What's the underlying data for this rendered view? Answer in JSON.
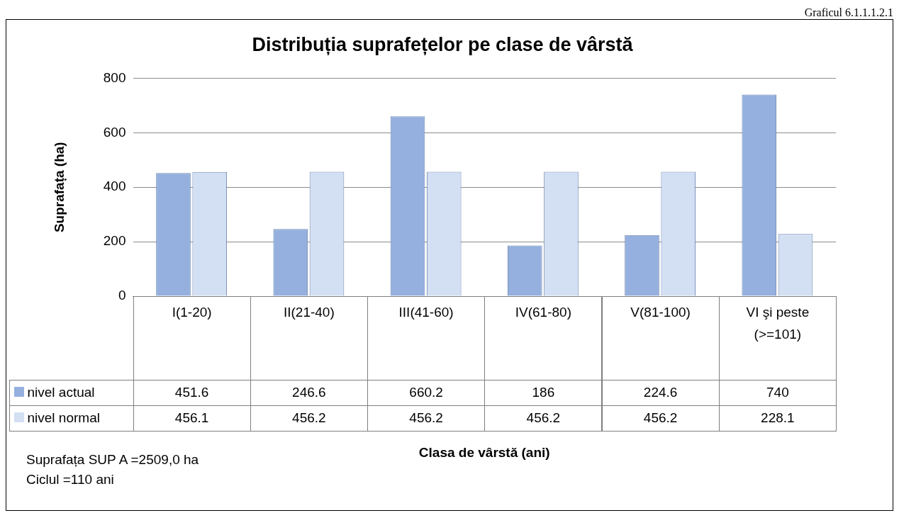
{
  "chart_data": {
    "type": "bar",
    "title": "Distribuția suprafețelor pe clase de vârstă",
    "ylabel": "Suprafața (ha)",
    "categories": [
      "I(1-20)",
      "II(21-40)",
      "III(41-60)",
      "IV(61-80)",
      "V(81-100)",
      "VI şi peste (>=101)"
    ],
    "series": [
      {
        "name": "nivel actual",
        "color": "#95b0de",
        "values": [
          451.6,
          246.6,
          660.2,
          186,
          224.6,
          740
        ]
      },
      {
        "name": "nivel normal",
        "color": "#d3e0f3",
        "values": [
          456.1,
          456.2,
          456.2,
          456.2,
          456.2,
          228.1
        ]
      }
    ],
    "ylim": [
      0,
      800
    ],
    "yticks": [
      0,
      200,
      400,
      600,
      800
    ],
    "grid": "y",
    "legend": "bottom",
    "data_labels": true,
    "annotations": [
      "Graficul 6.1.1.1.2.1",
      "Clasa de vârstă (ani)",
      "Suprafața SUP A =2509,0 ha",
      "Ciclul =110 ani"
    ]
  }
}
